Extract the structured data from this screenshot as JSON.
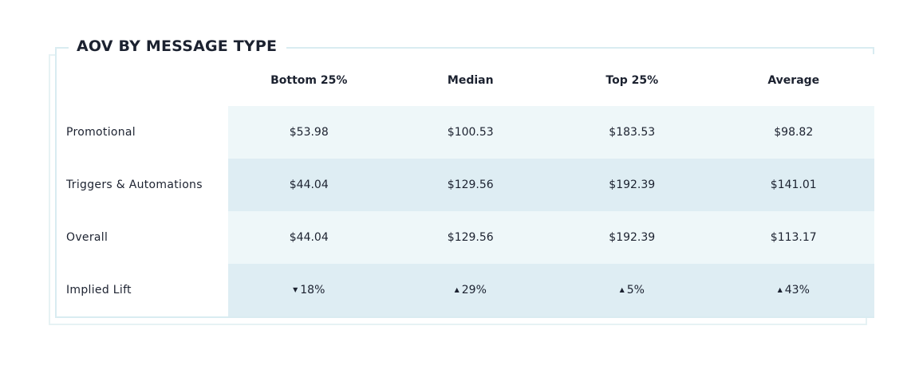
{
  "chart_data": {
    "type": "table",
    "title": "AOV BY MESSAGE TYPE",
    "columns": [
      "Bottom 25%",
      "Median",
      "Top 25%",
      "Average"
    ],
    "rows": [
      {
        "label": "Promotional",
        "values": [
          "$53.98",
          "$100.53",
          "$183.53",
          "$98.82"
        ]
      },
      {
        "label": "Triggers & Automations",
        "values": [
          "$44.04",
          "$129.56",
          "$192.39",
          "$141.01"
        ]
      },
      {
        "label": "Overall",
        "values": [
          "$44.04",
          "$129.56",
          "$192.39",
          "$113.17"
        ]
      },
      {
        "label": "Implied Lift",
        "values": [
          "18%",
          "29%",
          "5%",
          "43%"
        ],
        "arrows": [
          "down-arrow",
          "up-arrow",
          "up-arrow",
          "up-arrow"
        ]
      }
    ]
  },
  "colors": {
    "text": "#1c2230",
    "row_light": "#eef7f9",
    "row_dark": "#deedf3",
    "border": "#d9ecf1"
  },
  "glyphs": {
    "down-arrow": "▼",
    "up-arrow": "▲"
  }
}
